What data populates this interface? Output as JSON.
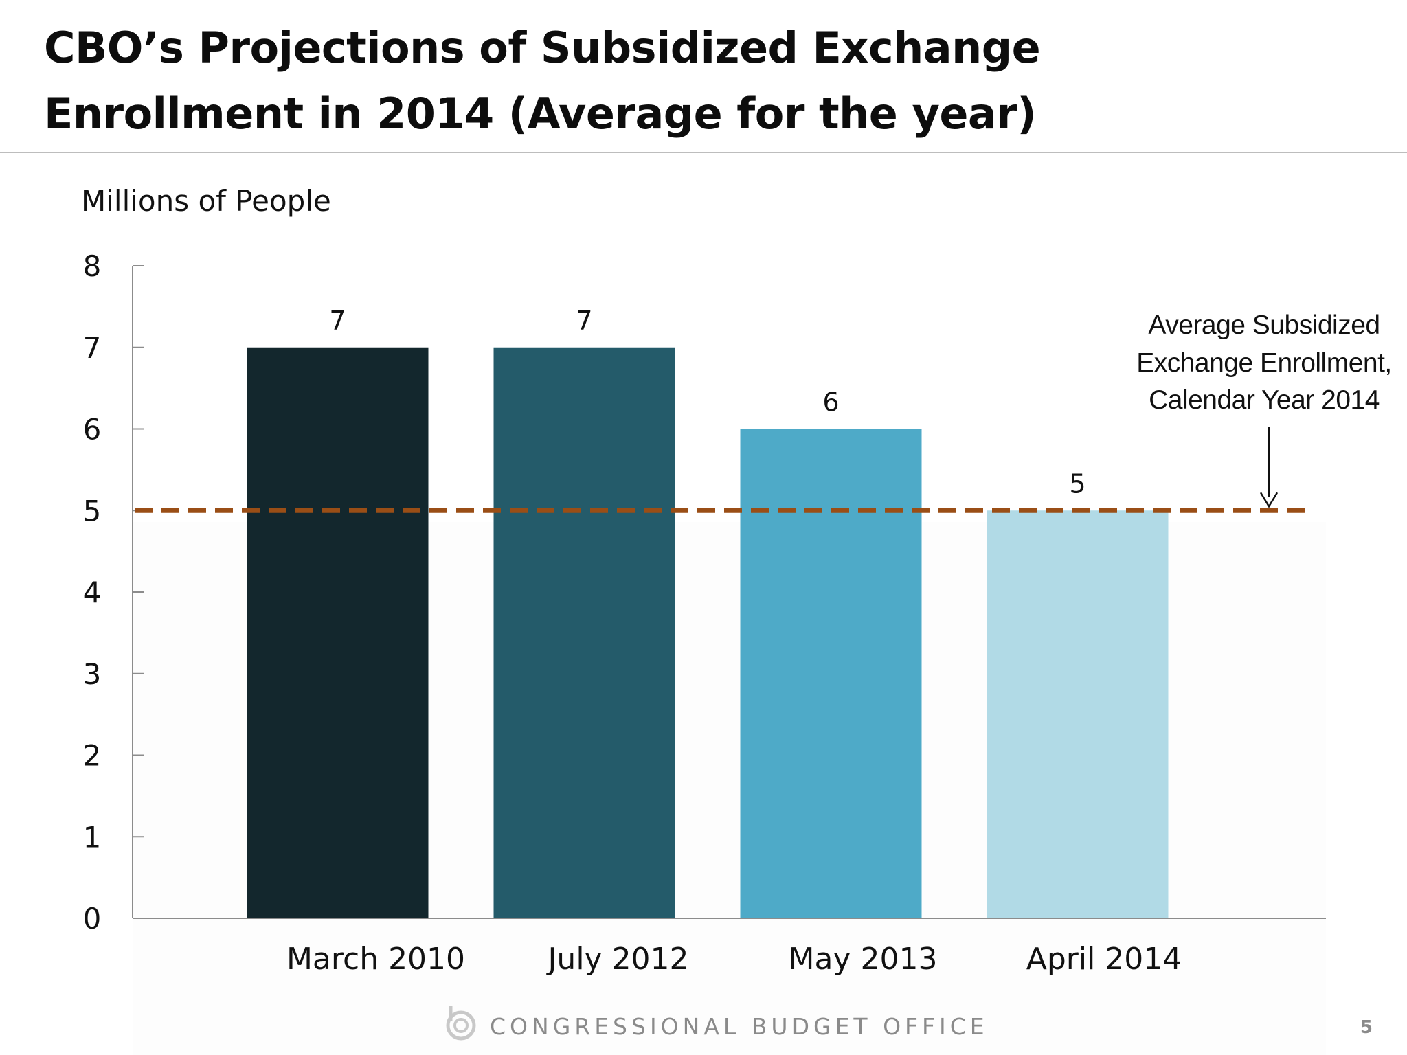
{
  "slide": {
    "title_line1": "CBO’s Projections of Subsidized Exchange",
    "title_line2": "Enrollment in 2014 (Average for the year)",
    "footer": "CONGRESSIONAL BUDGET OFFICE",
    "page_number": "5"
  },
  "chart_data": {
    "type": "bar",
    "title": "CBO’s Projections of Subsidized Exchange Enrollment in 2014 (Average for the year)",
    "ylabel": "Millions of People",
    "xlabel": "",
    "categories": [
      "March 2010",
      "July 2012",
      "May 2013",
      "April 2014"
    ],
    "values": [
      7,
      7,
      6,
      5
    ],
    "data_labels": [
      "7",
      "7",
      "6",
      "5"
    ],
    "bar_colors": [
      "#13272d",
      "#245b6a",
      "#4eaac8",
      "#b1dae6"
    ],
    "ylim": [
      0,
      8
    ],
    "yticks": [
      0,
      1,
      2,
      3,
      4,
      5,
      6,
      7,
      8
    ],
    "grid": false,
    "reference_line": {
      "value": 5,
      "style": "dashed",
      "color": "#9a4e16",
      "annotation": [
        "Average Subsidized",
        "Exchange Enrollment,",
        "Calendar Year 2014"
      ]
    }
  }
}
